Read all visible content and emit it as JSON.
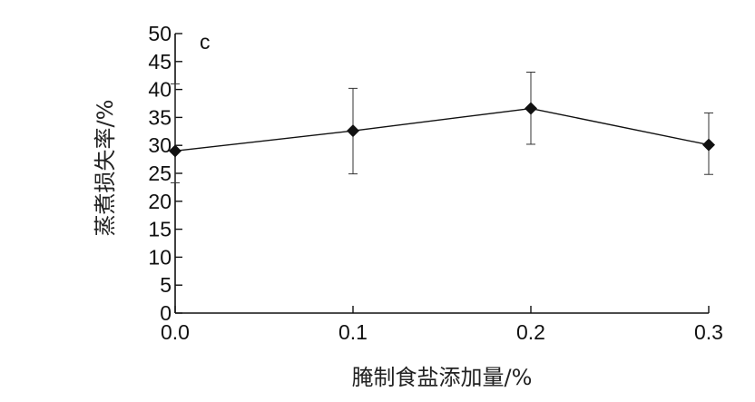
{
  "chart_data": {
    "type": "line",
    "panel_label": "c",
    "xlabel": "腌制食盐添加量/%",
    "ylabel": "蒸煮损失率/%",
    "x": [
      0.0,
      0.1,
      0.2,
      0.3
    ],
    "x_tick_labels": [
      "0.0",
      "0.1",
      "0.2",
      "0.3"
    ],
    "y_ticks": [
      0,
      5,
      10,
      15,
      20,
      25,
      30,
      35,
      40,
      45,
      50
    ],
    "xlim": [
      0.0,
      0.3
    ],
    "ylim": [
      0,
      50
    ],
    "grid": false,
    "series": [
      {
        "values": [
          29.0,
          32.6,
          36.6,
          30.1
        ],
        "error_low": [
          23.3,
          24.9,
          30.2,
          24.8
        ],
        "error_high": [
          41.0,
          40.2,
          43.1,
          35.8
        ],
        "marker": "diamond",
        "color": "#111111"
      }
    ]
  }
}
